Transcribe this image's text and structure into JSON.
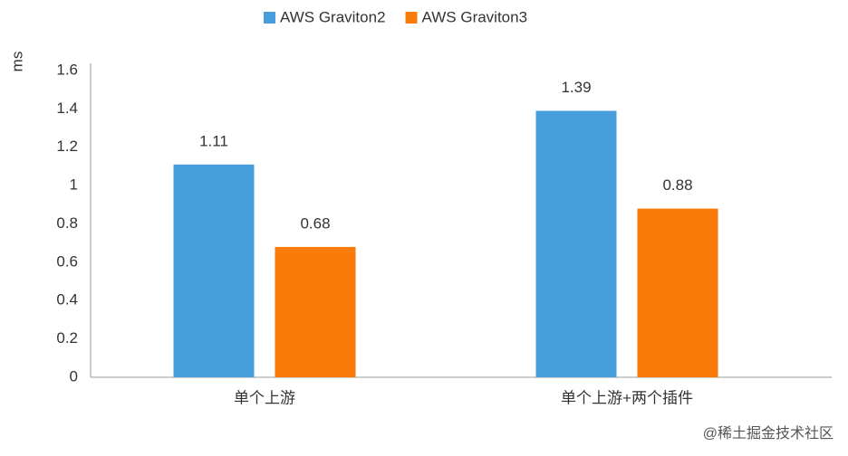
{
  "chart_data": {
    "type": "bar",
    "y_label": "ms",
    "categories": [
      "单个上游",
      "单个上游+两个插件"
    ],
    "series": [
      {
        "name": "AWS Graviton2",
        "color": "#479edb",
        "values": [
          1.11,
          1.39
        ]
      },
      {
        "name": "AWS Graviton3",
        "color": "#fa7b0a",
        "values": [
          0.68,
          0.88
        ]
      }
    ],
    "ylim": [
      0,
      1.6
    ],
    "yticks": [
      0,
      0.2,
      0.4,
      0.6,
      0.8,
      1,
      1.2,
      1.4,
      1.6
    ],
    "grid": false,
    "legend": "top",
    "watermark": "@稀土掘金技术社区"
  }
}
